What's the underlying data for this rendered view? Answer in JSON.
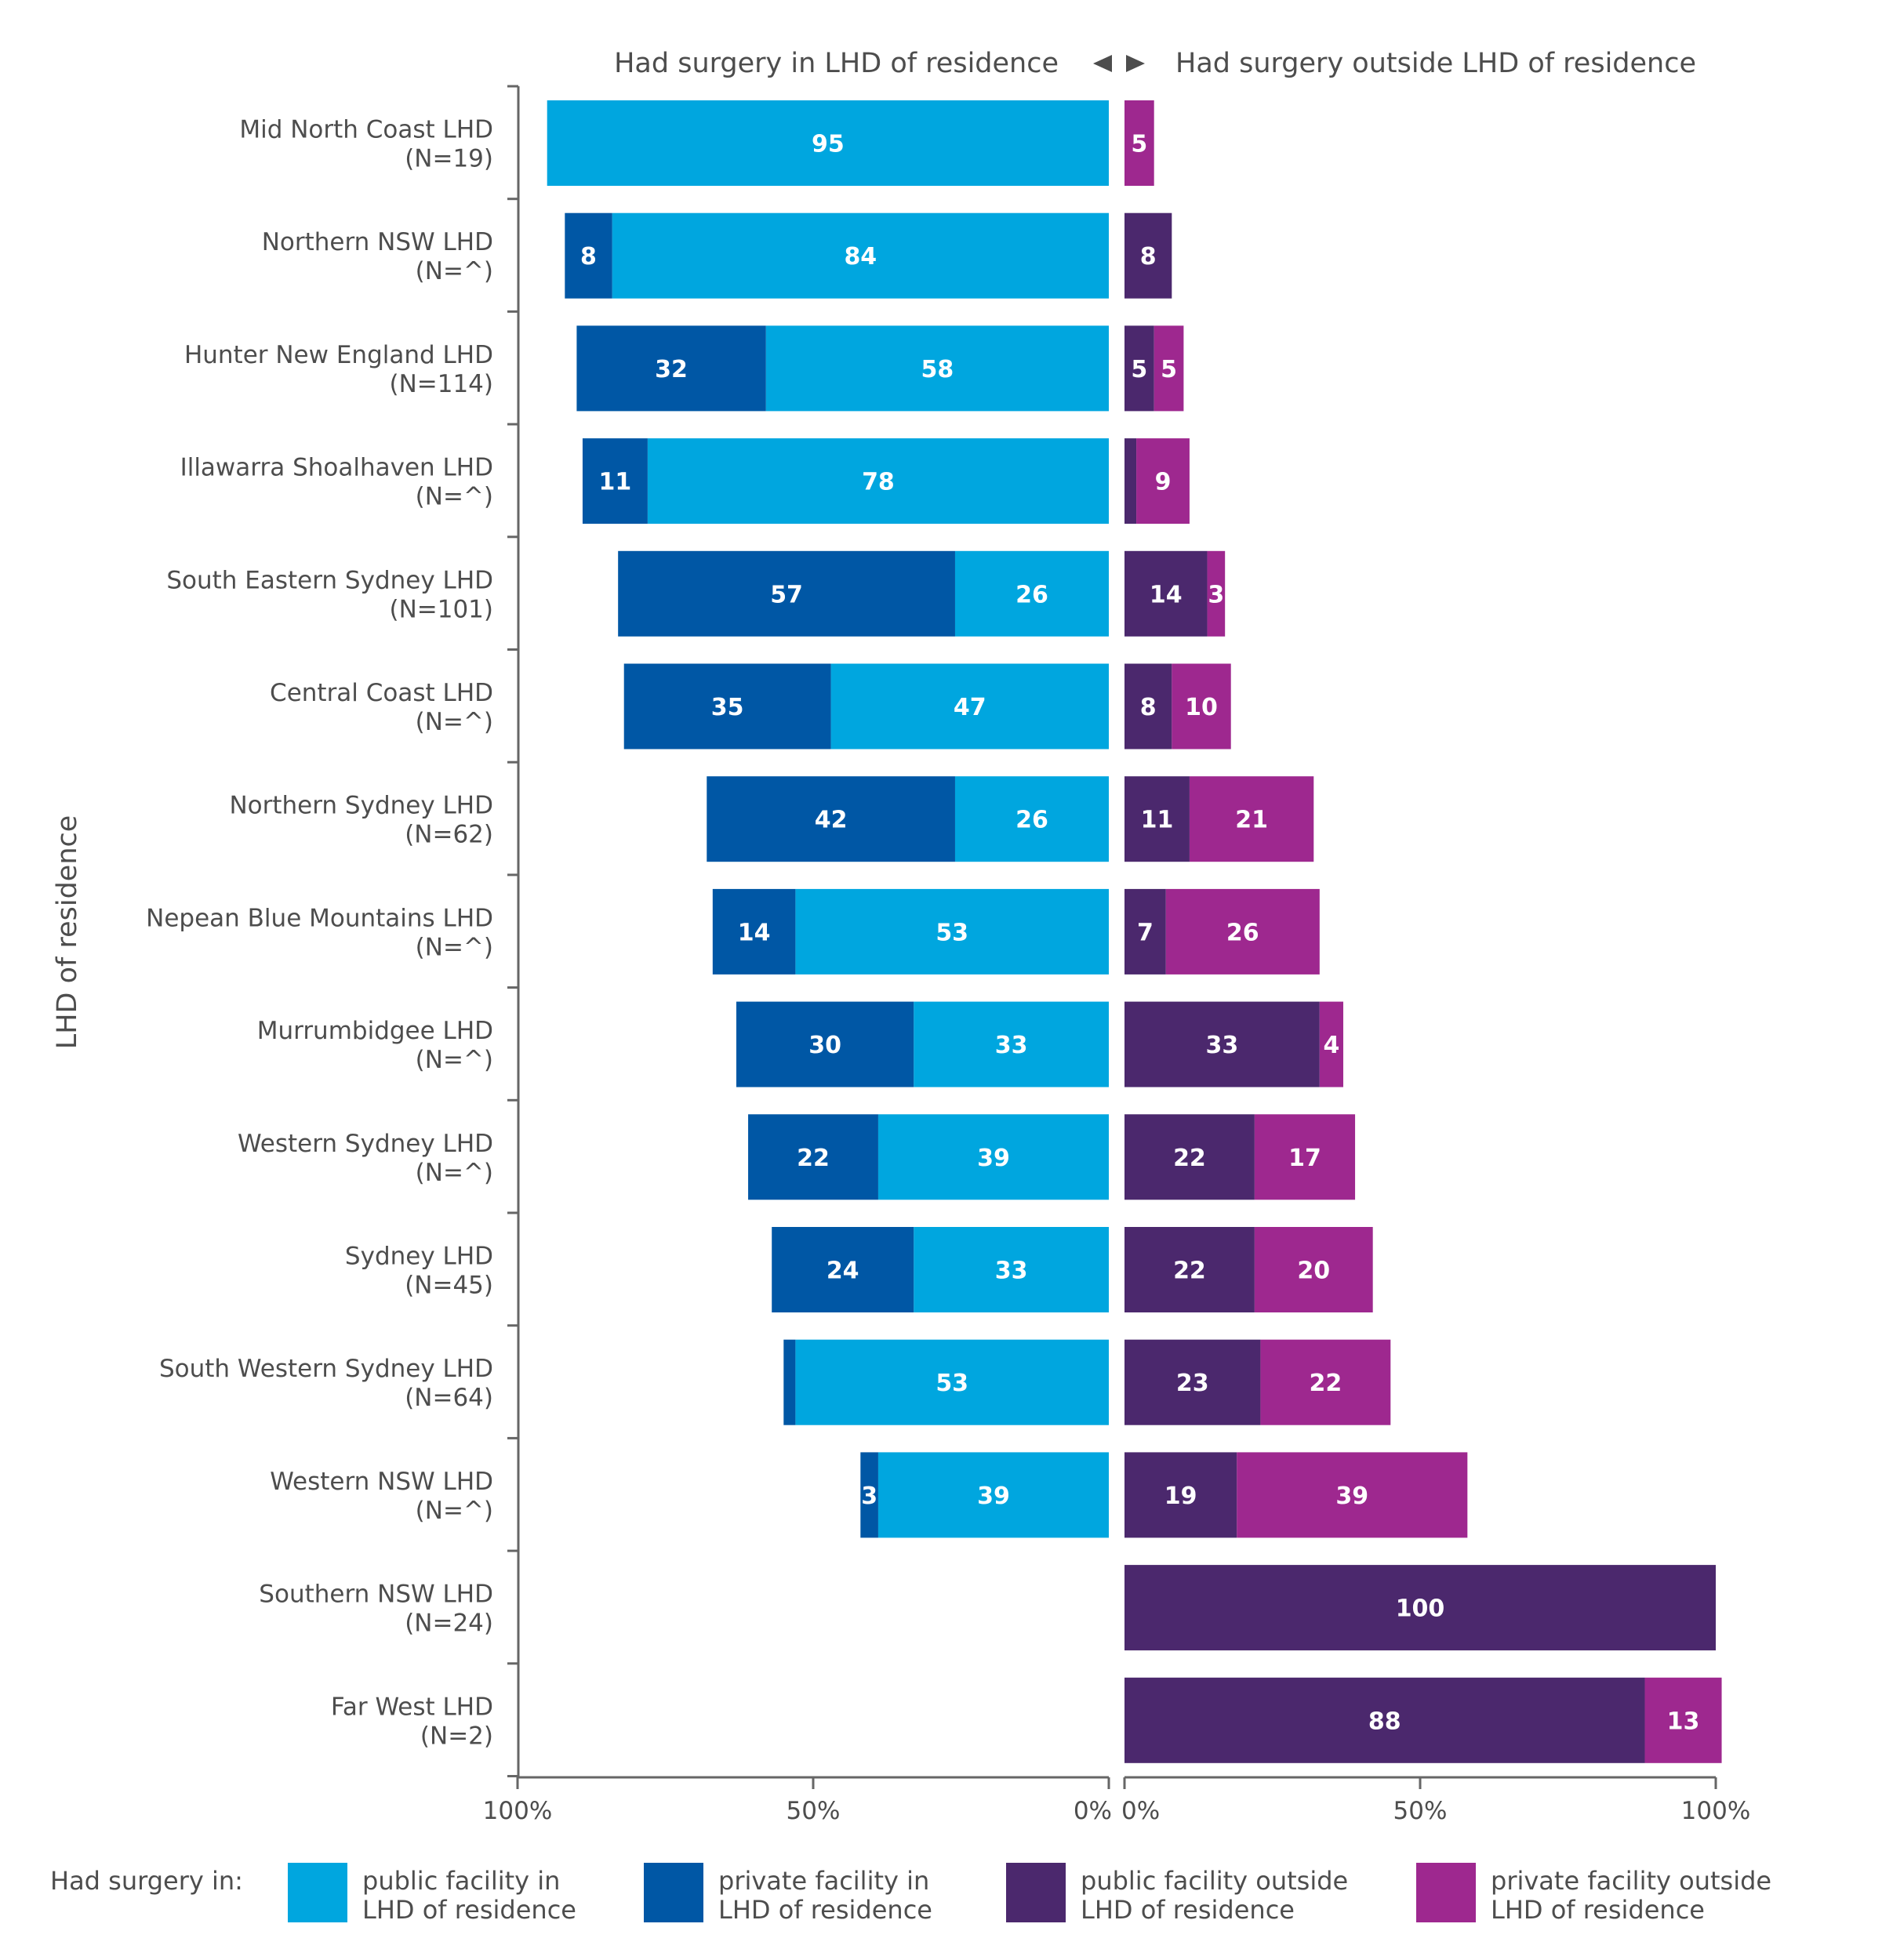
{
  "chart_data": {
    "type": "bar",
    "orientation": "horizontal-diverging-stacked",
    "left_heading": "Had surgery in LHD of residence",
    "right_heading": "Had surgery outside LHD of residence",
    "ylabel": "LHD of residence",
    "left_ticks": [
      "100%",
      "50%",
      "0%"
    ],
    "right_ticks": [
      "0%",
      "50%",
      "100%"
    ],
    "xlim": [
      0,
      100
    ],
    "legend_title": "Had surgery in:",
    "legend_placement": "bottom",
    "categories": [
      {
        "name": "Mid North Coast LHD",
        "n": "(N=19)"
      },
      {
        "name": "Northern NSW LHD",
        "n": "(N=^)"
      },
      {
        "name": "Hunter New England LHD",
        "n": "(N=114)"
      },
      {
        "name": "Illawarra Shoalhaven LHD",
        "n": "(N=^)"
      },
      {
        "name": "South Eastern Sydney LHD",
        "n": "(N=101)"
      },
      {
        "name": "Central Coast LHD",
        "n": "(N=^)"
      },
      {
        "name": "Northern Sydney LHD",
        "n": "(N=62)"
      },
      {
        "name": "Nepean Blue Mountains LHD",
        "n": "(N=^)"
      },
      {
        "name": "Murrumbidgee LHD",
        "n": "(N=^)"
      },
      {
        "name": "Western Sydney LHD",
        "n": "(N=^)"
      },
      {
        "name": "Sydney LHD",
        "n": "(N=45)"
      },
      {
        "name": "South Western Sydney LHD",
        "n": "(N=64)"
      },
      {
        "name": "Western NSW LHD",
        "n": "(N=^)"
      },
      {
        "name": "Southern NSW LHD",
        "n": "(N=24)"
      },
      {
        "name": "Far West LHD",
        "n": "(N=2)"
      }
    ],
    "series": [
      {
        "name": "public facility in LHD of residence",
        "side": "left",
        "color": "#00a6df",
        "values": [
          95,
          84,
          58,
          78,
          26,
          47,
          26,
          53,
          33,
          39,
          33,
          53,
          39,
          0,
          0
        ]
      },
      {
        "name": "private facility in LHD of residence",
        "side": "left",
        "color": "#0057a5",
        "values": [
          0,
          8,
          32,
          11,
          57,
          35,
          42,
          14,
          30,
          22,
          24,
          2,
          3,
          0,
          0
        ]
      },
      {
        "name": "public facility outside LHD of residence",
        "side": "right",
        "color": "#4b286d",
        "values": [
          0,
          8,
          5,
          2,
          14,
          8,
          11,
          7,
          33,
          22,
          22,
          23,
          19,
          100,
          88
        ]
      },
      {
        "name": "private facility outside LHD of residence",
        "side": "right",
        "color": "#9e288f",
        "values": [
          5,
          0,
          5,
          9,
          3,
          10,
          21,
          26,
          4,
          17,
          20,
          22,
          39,
          0,
          13
        ]
      }
    ],
    "legend": [
      {
        "line1": "public facility in",
        "line2": "LHD of residence"
      },
      {
        "line1": "private facility in",
        "line2": "LHD of residence"
      },
      {
        "line1": "public facility outside",
        "line2": "LHD of residence"
      },
      {
        "line1": "private facility outside",
        "line2": "LHD of residence"
      }
    ]
  }
}
